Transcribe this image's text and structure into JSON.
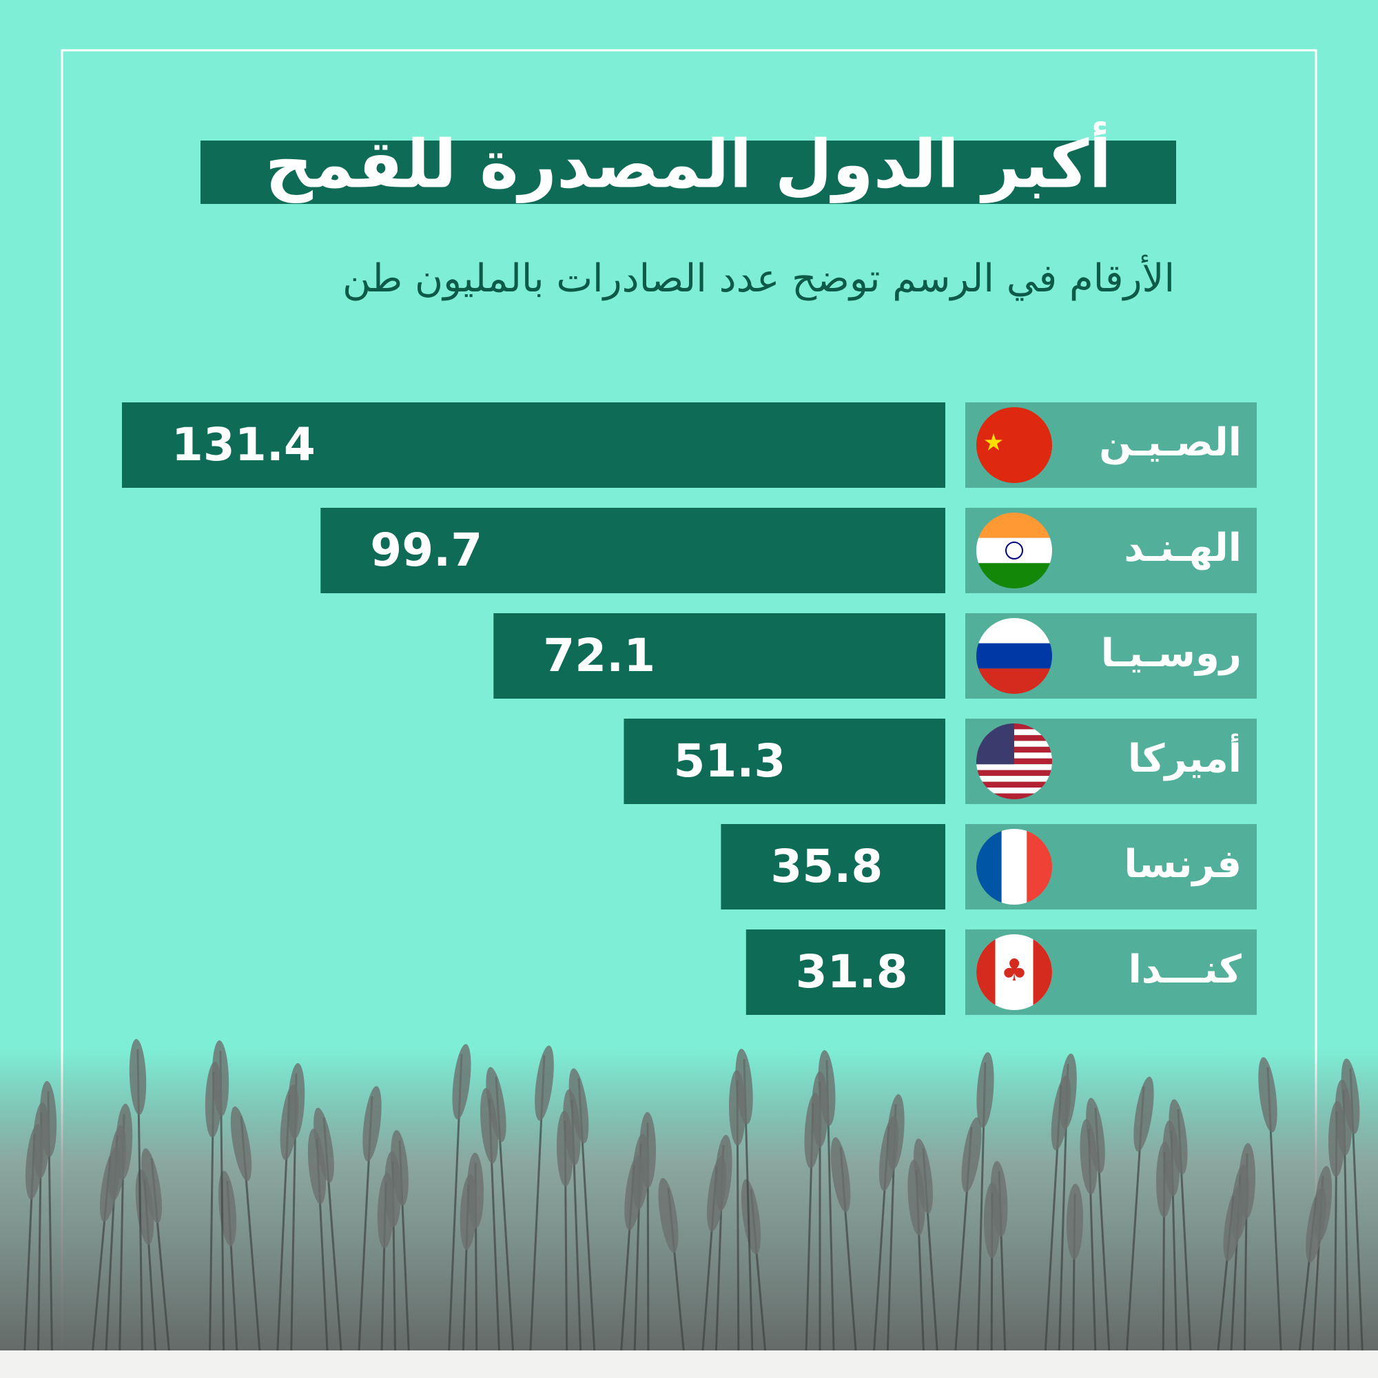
{
  "chart_data": {
    "type": "bar",
    "orientation": "horizontal",
    "title": "أكبر الدول المصدرة للقمح",
    "subtitle": "الأرقام في الرسم توضح عدد الصادرات بالمليون طن",
    "categories": [
      "الصـيـن",
      "الهـنـد",
      "روسـيـا",
      "أميركا",
      "فرنسا",
      "كنـــدا"
    ],
    "values": [
      131.4,
      99.7,
      72.1,
      51.3,
      35.8,
      31.8
    ],
    "color": "#0e6b55"
  }
}
